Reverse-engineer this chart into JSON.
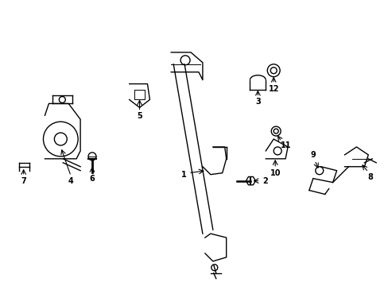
{
  "title": "",
  "background_color": "#ffffff",
  "line_color": "#000000",
  "label_color": "#000000",
  "fig_width": 4.89,
  "fig_height": 3.6,
  "dpi": 100
}
